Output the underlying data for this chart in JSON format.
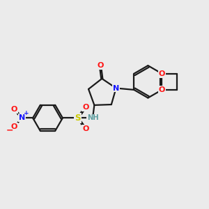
{
  "bg_color": "#ebebeb",
  "bond_color": "#1a1a1a",
  "N_color": "#1414ff",
  "O_color": "#ff1414",
  "S_color": "#cccc00",
  "NH_color": "#5f9ea0",
  "line_width": 1.6,
  "fig_size": [
    3.0,
    3.0
  ],
  "dpi": 100,
  "xlim": [
    0,
    10
  ],
  "ylim": [
    0,
    10
  ]
}
